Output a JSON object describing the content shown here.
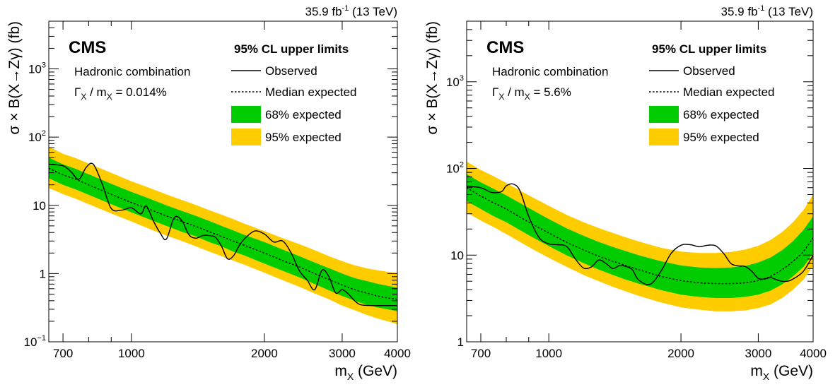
{
  "chart_data": [
    {
      "type": "line",
      "lumi_label": "35.9 fb",
      "lumi_sup": "-1",
      "energy_label": " (13 TeV)",
      "experiment": "CMS",
      "info_line1": "Hadronic combination",
      "info_gamma": "Γ",
      "info_gamma_sub": "X",
      "info_mid": " / m",
      "info_m_sub": "X",
      "info_value": " = 0.014%",
      "legend_title": "95% CL upper limits",
      "legend_observed": "Observed",
      "legend_median": "Median expected",
      "legend_68": "68% expected",
      "legend_95": "95% expected",
      "ylabel": "σ × B(X→Zγ) (fb)",
      "xlabel_main": "m",
      "xlabel_sub": "X",
      "xlabel_unit": " (GeV)",
      "xscale": "log",
      "yscale": "log",
      "xlim": [
        650,
        4000
      ],
      "ylim": [
        0.1,
        5000
      ],
      "xtick_labels": [
        {
          "v": 700,
          "t": "700"
        },
        {
          "v": 1000,
          "t": "1000"
        },
        {
          "v": 2000,
          "t": "2000"
        },
        {
          "v": 3000,
          "t": "3000"
        },
        {
          "v": 4000,
          "t": "4000"
        }
      ],
      "ytick_labels": [
        {
          "v": 0.1,
          "base": "10",
          "sup": "−1"
        },
        {
          "v": 1,
          "base": "1",
          "sup": ""
        },
        {
          "v": 10,
          "base": "10",
          "sup": ""
        },
        {
          "v": 100,
          "base": "10",
          "sup": "2"
        },
        {
          "v": 1000,
          "base": "10",
          "sup": "3"
        }
      ],
      "colors": {
        "band68": "#00cc00",
        "band95": "#ffcc00",
        "line": "#000000"
      },
      "x": [
        650,
        700,
        750,
        800,
        900,
        1000,
        1100,
        1200,
        1300,
        1400,
        1500,
        1600,
        1700,
        1800,
        2000,
        2200,
        2400,
        2600,
        2800,
        3000,
        3200,
        3400,
        3600,
        3800,
        4000
      ],
      "median": [
        35,
        28,
        24,
        20,
        14.5,
        11,
        8.7,
        7.0,
        5.8,
        4.9,
        4.1,
        3.5,
        3.0,
        2.6,
        2.0,
        1.55,
        1.25,
        1.0,
        0.82,
        0.68,
        0.58,
        0.52,
        0.47,
        0.44,
        0.42
      ],
      "band68_low": [
        25,
        20,
        17,
        14.3,
        10.4,
        7.9,
        6.2,
        5.0,
        4.1,
        3.5,
        2.9,
        2.5,
        2.1,
        1.85,
        1.4,
        1.1,
        0.88,
        0.7,
        0.57,
        0.47,
        0.4,
        0.35,
        0.32,
        0.3,
        0.28
      ],
      "band68_high": [
        50,
        40,
        34,
        28.6,
        20.7,
        15.7,
        12.5,
        10.0,
        8.3,
        7.0,
        5.9,
        5.0,
        4.3,
        3.7,
        2.9,
        2.25,
        1.8,
        1.45,
        1.2,
        1.0,
        0.86,
        0.78,
        0.71,
        0.66,
        0.62
      ],
      "band95_low": [
        18,
        14.6,
        12.4,
        10.4,
        7.6,
        5.8,
        4.5,
        3.6,
        3.0,
        2.5,
        2.1,
        1.8,
        1.55,
        1.35,
        1.03,
        0.8,
        0.64,
        0.51,
        0.42,
        0.34,
        0.29,
        0.25,
        0.22,
        0.2,
        0.18
      ],
      "band95_high": [
        72,
        57,
        49,
        41,
        30,
        22.5,
        18,
        14.5,
        12,
        10.1,
        8.5,
        7.3,
        6.3,
        5.4,
        4.2,
        3.3,
        2.7,
        2.2,
        1.8,
        1.52,
        1.32,
        1.2,
        1.12,
        1.06,
        1.02
      ],
      "observed_x": [
        650,
        700,
        730,
        760,
        790,
        820,
        860,
        900,
        950,
        1000,
        1050,
        1080,
        1120,
        1160,
        1200,
        1250,
        1300,
        1350,
        1400,
        1450,
        1500,
        1550,
        1600,
        1650,
        1700,
        1750,
        1800,
        1900,
        2000,
        2100,
        2200,
        2300,
        2400,
        2500,
        2600,
        2700,
        2800,
        2900,
        3000,
        3100,
        3200,
        3300,
        3500,
        3700,
        4000
      ],
      "observed": [
        40,
        38,
        31,
        24,
        36,
        40,
        20,
        9.0,
        8.5,
        9.2,
        7.5,
        9.8,
        6.0,
        4.0,
        3.2,
        6.6,
        6.0,
        3.7,
        3.3,
        3.6,
        3.6,
        3.4,
        2.5,
        1.65,
        1.8,
        2.5,
        3.2,
        4.2,
        3.8,
        2.9,
        3.0,
        2.0,
        1.1,
        0.8,
        0.58,
        1.12,
        0.9,
        0.52,
        0.58,
        0.5,
        0.4,
        0.35,
        0.34,
        0.34,
        0.34
      ]
    },
    {
      "type": "line",
      "lumi_label": "35.9 fb",
      "lumi_sup": "-1",
      "energy_label": " (13 TeV)",
      "experiment": "CMS",
      "info_line1": "Hadronic combination",
      "info_gamma": "Γ",
      "info_gamma_sub": "X",
      "info_mid": " / m",
      "info_m_sub": "X",
      "info_value": " = 5.6%",
      "legend_title": "95% CL upper limits",
      "legend_observed": "Observed",
      "legend_median": "Median expected",
      "legend_68": "68% expected",
      "legend_95": "95% expected",
      "ylabel": "σ × B(X→Zγ) (fb)",
      "xlabel_main": "m",
      "xlabel_sub": "X",
      "xlabel_unit": " (GeV)",
      "xscale": "log",
      "yscale": "log",
      "xlim": [
        650,
        4000
      ],
      "ylim": [
        1,
        5000
      ],
      "xtick_labels": [
        {
          "v": 700,
          "t": "700"
        },
        {
          "v": 1000,
          "t": "1000"
        },
        {
          "v": 2000,
          "t": "2000"
        },
        {
          "v": 3000,
          "t": "3000"
        },
        {
          "v": 4000,
          "t": "4000"
        }
      ],
      "ytick_labels": [
        {
          "v": 1,
          "base": "1",
          "sup": ""
        },
        {
          "v": 10,
          "base": "10",
          "sup": ""
        },
        {
          "v": 100,
          "base": "10",
          "sup": "2"
        },
        {
          "v": 1000,
          "base": "10",
          "sup": "3"
        }
      ],
      "colors": {
        "band68": "#00cc00",
        "band95": "#ffcc00",
        "line": "#000000"
      },
      "x": [
        650,
        700,
        750,
        800,
        900,
        1000,
        1100,
        1200,
        1300,
        1400,
        1500,
        1600,
        1700,
        1800,
        2000,
        2200,
        2400,
        2600,
        2800,
        3000,
        3200,
        3400,
        3600,
        3800,
        4000
      ],
      "median": [
        60,
        48,
        40,
        34,
        24,
        18,
        14,
        11.5,
        9.7,
        8.5,
        7.6,
        6.8,
        6.2,
        5.7,
        5.1,
        4.8,
        4.7,
        4.7,
        4.8,
        5.1,
        5.7,
        6.8,
        8.5,
        11,
        16
      ],
      "band68_low": [
        42,
        34,
        28,
        24,
        17,
        12.7,
        9.9,
        8.1,
        6.8,
        5.9,
        5.2,
        4.7,
        4.3,
        3.95,
        3.5,
        3.3,
        3.2,
        3.2,
        3.3,
        3.5,
        3.9,
        4.6,
        5.7,
        7.3,
        10.5
      ],
      "band68_high": [
        86,
        69,
        58,
        49,
        35,
        26,
        20.3,
        16.7,
        14.2,
        12.4,
        11.1,
        10.0,
        9.2,
        8.5,
        7.6,
        7.2,
        7.1,
        7.2,
        7.5,
        8.2,
        9.4,
        11.4,
        14.5,
        19.5,
        28
      ],
      "band95_low": [
        31,
        25,
        21,
        17.5,
        12.4,
        9.3,
        7.3,
        5.9,
        5.0,
        4.3,
        3.8,
        3.4,
        3.1,
        2.85,
        2.5,
        2.35,
        2.25,
        2.25,
        2.3,
        2.45,
        2.7,
        3.2,
        4.0,
        5.2,
        7.5
      ],
      "band95_high": [
        120,
        96,
        81,
        68,
        49,
        37,
        29,
        24,
        20.5,
        18,
        16,
        14.4,
        13.2,
        12.2,
        11.0,
        10.6,
        10.6,
        10.9,
        11.6,
        12.8,
        15,
        18.5,
        24,
        33,
        50
      ],
      "observed_x": [
        650,
        700,
        740,
        780,
        800,
        830,
        860,
        900,
        950,
        1000,
        1050,
        1100,
        1150,
        1200,
        1250,
        1300,
        1350,
        1400,
        1450,
        1500,
        1550,
        1600,
        1700,
        1800,
        1900,
        2000,
        2100,
        2200,
        2300,
        2400,
        2500,
        2600,
        2700,
        2800,
        2900,
        3000,
        3100,
        3200,
        3300,
        3400,
        3500,
        3600,
        3800,
        4000
      ],
      "observed": [
        62,
        60,
        53,
        54,
        63,
        66,
        55,
        28,
        16,
        13.5,
        13.2,
        12.5,
        9.0,
        7.1,
        7.3,
        8.8,
        8.0,
        7.0,
        7.6,
        7.4,
        6.8,
        5.2,
        4.6,
        6.5,
        10.5,
        13.0,
        13.2,
        12.5,
        13.0,
        12.8,
        10.5,
        8.0,
        7.5,
        7.4,
        6.5,
        5.4,
        5.3,
        5.5,
        5.2,
        5.0,
        5.0,
        5.3,
        6.5,
        10.0
      ]
    }
  ]
}
